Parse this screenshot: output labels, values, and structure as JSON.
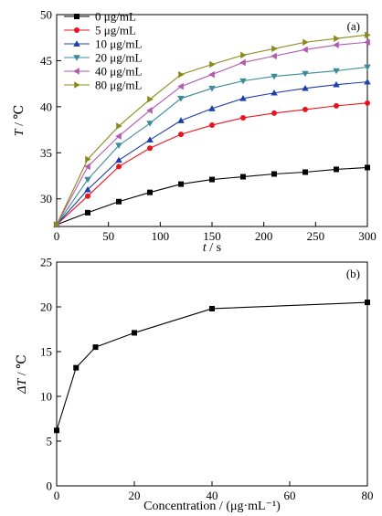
{
  "chart_data": [
    {
      "type": "line",
      "panel_label": "(a)",
      "xlabel_var": "t",
      "xlabel_unit": " / s",
      "ylabel_var": "T",
      "ylabel_unit": " / ℃",
      "xlim": [
        0,
        300
      ],
      "ylim": [
        27,
        50
      ],
      "xticks": [
        0,
        50,
        100,
        150,
        200,
        250,
        300
      ],
      "yticks": [
        30,
        35,
        40,
        45,
        50
      ],
      "legend_position": "top-left",
      "grid": false,
      "x": [
        0,
        30,
        60,
        90,
        120,
        150,
        180,
        210,
        240,
        270,
        300
      ],
      "series": [
        {
          "name": "0 μg/mL",
          "marker": "square",
          "color": "#000000",
          "values": [
            27.2,
            28.5,
            29.7,
            30.7,
            31.6,
            32.1,
            32.4,
            32.7,
            32.9,
            33.2,
            33.4
          ]
        },
        {
          "name": "5 μg/mL",
          "marker": "circle",
          "color": "#e8141c",
          "values": [
            27.2,
            30.3,
            33.5,
            35.5,
            37.0,
            38.0,
            38.8,
            39.3,
            39.7,
            40.1,
            40.4
          ]
        },
        {
          "name": "10 μg/mL",
          "marker": "triangle-up",
          "color": "#1c3fa8",
          "values": [
            27.2,
            31.0,
            34.2,
            36.4,
            38.5,
            39.8,
            40.9,
            41.5,
            42.0,
            42.4,
            42.7
          ]
        },
        {
          "name": "20 μg/mL",
          "marker": "triangle-down",
          "color": "#3a8a9a",
          "values": [
            27.2,
            32.1,
            35.8,
            38.2,
            40.9,
            42.0,
            42.8,
            43.3,
            43.6,
            43.9,
            44.3
          ]
        },
        {
          "name": "40 μg/mL",
          "marker": "triangle-left",
          "color": "#b05ab0",
          "values": [
            27.2,
            33.5,
            36.8,
            39.6,
            42.2,
            43.5,
            44.8,
            45.5,
            46.2,
            46.7,
            47.0
          ]
        },
        {
          "name": "80 μg/mL",
          "marker": "triangle-right",
          "color": "#8a8a1a",
          "values": [
            27.2,
            34.3,
            37.9,
            40.8,
            43.5,
            44.6,
            45.6,
            46.3,
            47.0,
            47.4,
            47.8
          ]
        }
      ]
    },
    {
      "type": "line",
      "panel_label": "(b)",
      "xlabel": "Concentration / (μg·mL⁻¹)",
      "ylabel_var": "ΔT",
      "ylabel_unit": " / ℃",
      "xlim": [
        0,
        80
      ],
      "ylim": [
        0,
        25
      ],
      "xticks": [
        0,
        20,
        40,
        60,
        80
      ],
      "yticks": [
        0,
        5,
        10,
        15,
        20,
        25
      ],
      "grid": false,
      "series": [
        {
          "marker": "square",
          "color": "#000000",
          "x": [
            0,
            5,
            10,
            20,
            40,
            80
          ],
          "values": [
            6.2,
            13.2,
            15.5,
            17.1,
            19.8,
            20.5
          ]
        }
      ]
    }
  ]
}
